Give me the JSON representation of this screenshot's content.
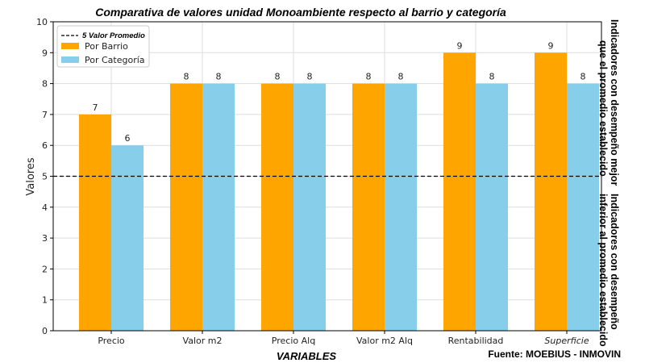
{
  "chart_data": {
    "type": "bar",
    "title": "Comparativa de valores unidad Monoambiente respecto al barrio y categoría",
    "xlabel": "VARIABLES",
    "ylabel": "Valores",
    "ylim": [
      0,
      10
    ],
    "yticks": [
      "0",
      "1",
      "2",
      "3",
      "4",
      "5",
      "6",
      "7",
      "8",
      "9",
      "10"
    ],
    "categories": [
      "Precio",
      "Valor m2",
      "Precio Alq",
      "Valor m2 Alq",
      "Rentabilidad",
      "Superficie"
    ],
    "series": [
      {
        "name": "Por Barrio",
        "color": "#FFA500",
        "values": [
          7,
          8,
          8,
          8,
          9,
          9
        ]
      },
      {
        "name": "Por Categoría",
        "color": "#87CEEB",
        "values": [
          6,
          8,
          8,
          8,
          8,
          8
        ]
      }
    ],
    "reference_line": {
      "value": 5,
      "label": "5 Valor Promedio",
      "style": "dashed",
      "color": "#000000"
    },
    "grid": true,
    "legend_position": "top-left",
    "annotations": {
      "upper_line1": "Indicadores con desempeño mejor",
      "upper_line2": "que el promedio establecido",
      "lower_line1": "Indicadores con desempeño",
      "lower_line2": "inferior al promedio establecido"
    },
    "source": "Fuente: MOEBIUS - INMOVIN"
  }
}
